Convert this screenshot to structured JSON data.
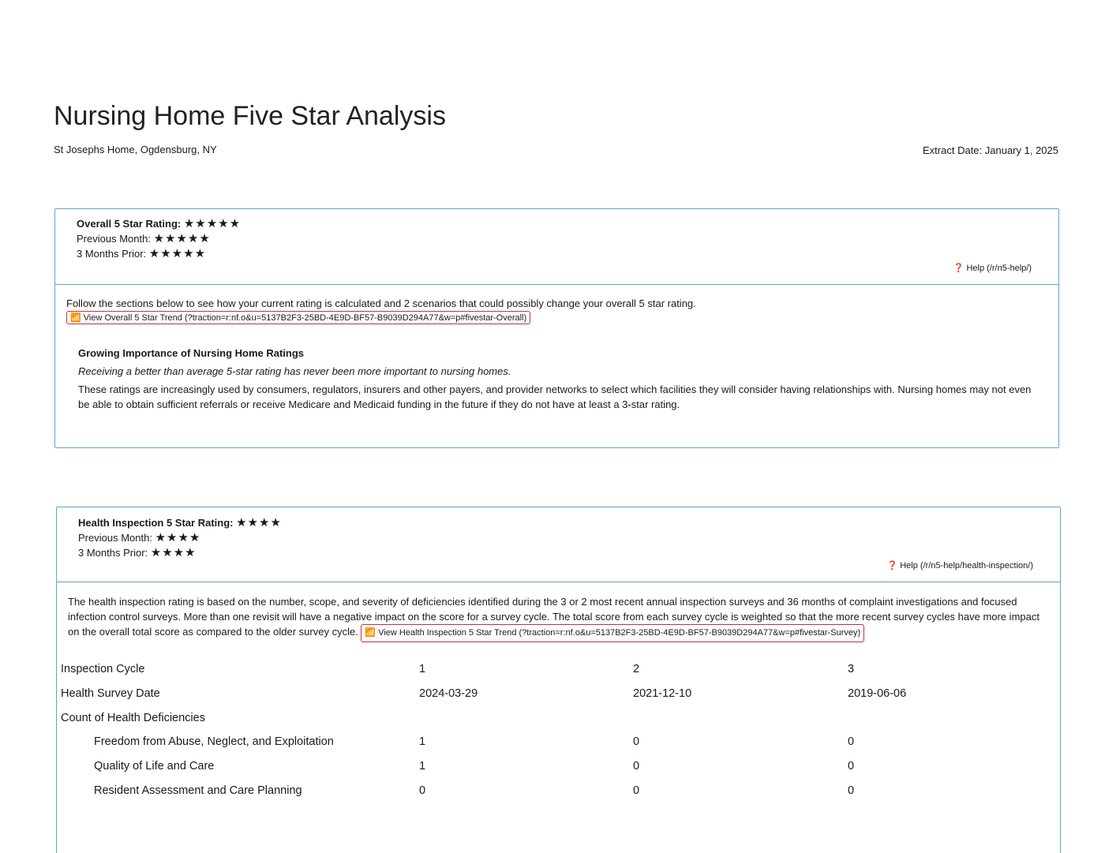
{
  "title": "Nursing Home Five Star Analysis",
  "facility": "St Josephs Home, Ogdensburg, NY",
  "extract_date": "Extract Date: January 1, 2025",
  "overall": {
    "rating_label": "Overall 5 Star Rating:",
    "rating": 5,
    "rating_stars": "★★★★★",
    "prev_label": "Previous Month:",
    "prev": 5,
    "prev_stars": "★★★★★",
    "prior_label": "3 Months Prior:",
    "prior": 5,
    "prior_stars": "★★★★★",
    "help": "Help (/r/n5-help/)",
    "intro": "Follow the sections below to see how your current rating is calculated and 2 scenarios that could possibly change your overall 5 star rating.",
    "trend_link": "View Overall 5 Star Trend (?traction=r:nf.o&u=5137B2F3-25BD-4E9D-BF57-B9039D294A77&w=p#fivestar-Overall)",
    "importance_title": "Growing Importance of Nursing Home Ratings",
    "importance_italic": "Receiving a better than average 5-star rating has never been more important to nursing homes.",
    "importance_body": "These ratings are increasingly used by consumers, regulators, insurers and other payers, and provider networks to select which facilities they will consider having relationships with. Nursing homes may not even be able to obtain sufficient referrals or receive Medicare and Medicaid funding in the future if they do not have at least a 3-star rating."
  },
  "health": {
    "rating_label": "Health Inspection 5 Star Rating:",
    "rating": 4,
    "rating_stars": "★★★★",
    "prev_label": "Previous Month:",
    "prev": 4,
    "prev_stars": "★★★★",
    "prior_label": "3 Months Prior:",
    "prior": 4,
    "prior_stars": "★★★★",
    "help": "Help (/r/n5-help/health-inspection/)",
    "intro": "The health inspection rating is based on the number, scope, and severity of deficiencies identified during the 3 or 2 most recent annual inspection surveys and 36 months of complaint investigations and focused infection control surveys. More than one revisit will have a negative impact on the score for a survey cycle. The total score from each survey cycle is weighted so that the more recent survey cycles have more impact on the overall total score as compared to the older survey cycle.",
    "trend_link": "View Health Inspection 5 Star Trend (?traction=r:nf.o&u=5137B2F3-25BD-4E9D-BF57-B9039D294A77&w=p#fivestar-Survey)",
    "table": [
      {
        "label": "Inspection Cycle",
        "values": [
          "1",
          "2",
          "3"
        ],
        "indent": false
      },
      {
        "label": "Health Survey Date",
        "values": [
          "2024-03-29",
          "2021-12-10",
          "2019-06-06"
        ],
        "indent": false
      },
      {
        "label": "Count of Health Deficiencies",
        "values": [
          "",
          "",
          ""
        ],
        "indent": false
      },
      {
        "label": "Freedom from Abuse, Neglect, and Exploitation",
        "values": [
          "1",
          "0",
          "0"
        ],
        "indent": true
      },
      {
        "label": "Quality of Life and Care",
        "values": [
          "1",
          "0",
          "0"
        ],
        "indent": true
      },
      {
        "label": "Resident Assessment and Care Planning",
        "values": [
          "0",
          "0",
          "0"
        ],
        "indent": true
      }
    ]
  },
  "colors": {
    "border": "#5ba7c9",
    "link_border": "#c0304a"
  }
}
